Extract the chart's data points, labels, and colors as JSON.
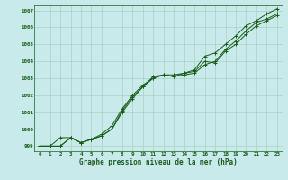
{
  "title": "Graphe pression niveau de la mer (hPa)",
  "bg_color": "#c8eaea",
  "grid_color": "#a0ccbb",
  "line_color": "#1a5c1a",
  "xlim": [
    -0.5,
    23.5
  ],
  "ylim": [
    998.7,
    1007.3
  ],
  "yticks": [
    999,
    1000,
    1001,
    1002,
    1003,
    1004,
    1005,
    1006,
    1007
  ],
  "xticks": [
    0,
    1,
    2,
    3,
    4,
    5,
    6,
    7,
    8,
    9,
    10,
    11,
    12,
    13,
    14,
    15,
    16,
    17,
    18,
    19,
    20,
    21,
    22,
    23
  ],
  "series1": [
    999.0,
    999.0,
    999.0,
    999.5,
    999.2,
    999.4,
    999.6,
    1000.0,
    1001.0,
    1001.8,
    1002.5,
    1003.0,
    1003.2,
    1003.1,
    1003.2,
    1003.3,
    1003.8,
    1004.0,
    1004.7,
    1005.2,
    1005.8,
    1006.3,
    1006.5,
    1006.8
  ],
  "series2": [
    999.0,
    999.0,
    999.5,
    999.5,
    999.2,
    999.4,
    999.7,
    1000.2,
    1001.2,
    1002.0,
    1002.6,
    1003.0,
    1003.2,
    1003.2,
    1003.3,
    1003.4,
    1004.0,
    1003.9,
    1004.6,
    1005.0,
    1005.6,
    1006.1,
    1006.4,
    1006.7
  ],
  "series3": [
    999.0,
    999.0,
    999.0,
    999.5,
    999.2,
    999.4,
    999.6,
    1000.0,
    1001.1,
    1001.9,
    1002.5,
    1003.1,
    1003.2,
    1003.1,
    1003.3,
    1003.5,
    1004.3,
    1004.5,
    1005.0,
    1005.5,
    1006.1,
    1006.4,
    1006.8,
    1007.1
  ],
  "tick_fontsize": 4.2,
  "xlabel_fontsize": 5.5
}
